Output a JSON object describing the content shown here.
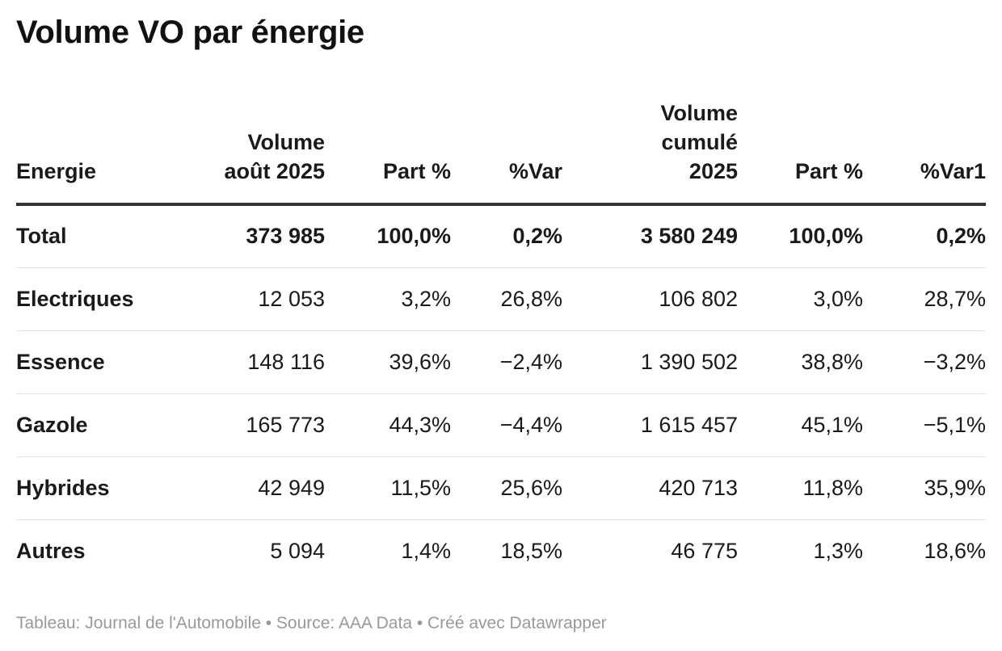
{
  "title": "Volume VO par énergie",
  "table": {
    "headers": [
      [
        "Energie"
      ],
      [
        "Volume",
        "août 2025"
      ],
      [
        "Part %"
      ],
      [
        "%Var"
      ],
      [
        "Volume",
        "cumulé",
        "2025"
      ],
      [
        "Part %"
      ],
      [
        "%Var1"
      ]
    ],
    "rows": [
      [
        "Total",
        "373 985",
        "100,0%",
        "0,2%",
        "3 580 249",
        "100,0%",
        "0,2%"
      ],
      [
        "Electriques",
        "12 053",
        "3,2%",
        "26,8%",
        "106 802",
        "3,0%",
        "28,7%"
      ],
      [
        "Essence",
        "148 116",
        "39,6%",
        "−2,4%",
        "1 390 502",
        "38,8%",
        "−3,2%"
      ],
      [
        "Gazole",
        "165 773",
        "44,3%",
        "−4,4%",
        "1 615 457",
        "45,1%",
        "−5,1%"
      ],
      [
        "Hybrides",
        "42 949",
        "11,5%",
        "25,6%",
        "420 713",
        "11,8%",
        "35,9%"
      ],
      [
        "Autres",
        "5 094",
        "1,4%",
        "18,5%",
        "46 775",
        "1,3%",
        "18,6%"
      ]
    ]
  },
  "footer": "Tableau: Journal de l'Automobile • Source: AAA Data • Créé avec Datawrapper",
  "chart_data": {
    "type": "table",
    "title": "Volume VO par énergie",
    "columns": [
      "Energie",
      "Volume août 2025",
      "Part %",
      "%Var",
      "Volume cumulé 2025",
      "Part %",
      "%Var1"
    ],
    "rows": [
      {
        "Energie": "Total",
        "Volume août 2025": 373985,
        "Part %": 100.0,
        "%Var": 0.2,
        "Volume cumulé 2025": 3580249,
        "Part % cumulé": 100.0,
        "%Var1": 0.2
      },
      {
        "Energie": "Electriques",
        "Volume août 2025": 12053,
        "Part %": 3.2,
        "%Var": 26.8,
        "Volume cumulé 2025": 106802,
        "Part % cumulé": 3.0,
        "%Var1": 28.7
      },
      {
        "Energie": "Essence",
        "Volume août 2025": 148116,
        "Part %": 39.6,
        "%Var": -2.4,
        "Volume cumulé 2025": 1390502,
        "Part % cumulé": 38.8,
        "%Var1": -3.2
      },
      {
        "Energie": "Gazole",
        "Volume août 2025": 165773,
        "Part %": 44.3,
        "%Var": -4.4,
        "Volume cumulé 2025": 1615457,
        "Part % cumulé": 45.1,
        "%Var1": -5.1
      },
      {
        "Energie": "Hybrides",
        "Volume août 2025": 42949,
        "Part %": 11.5,
        "%Var": 25.6,
        "Volume cumulé 2025": 420713,
        "Part % cumulé": 11.8,
        "%Var1": 35.9
      },
      {
        "Energie": "Autres",
        "Volume août 2025": 5094,
        "Part %": 1.4,
        "%Var": 18.5,
        "Volume cumulé 2025": 46775,
        "Part % cumulé": 1.3,
        "%Var1": 18.6
      }
    ]
  }
}
